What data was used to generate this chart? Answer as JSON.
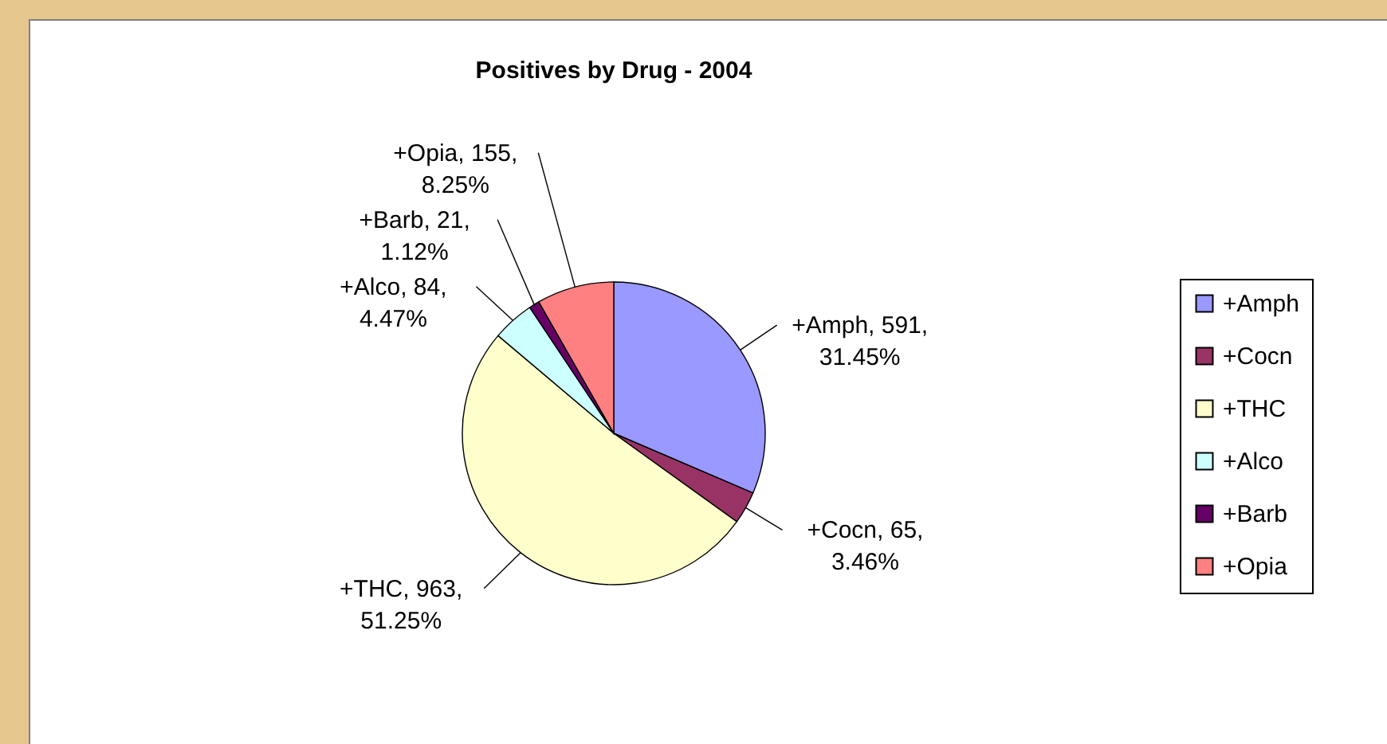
{
  "chart_data": {
    "type": "pie",
    "title": "Positives by Drug - 2004",
    "categories": [
      "+Amph",
      "+Cocn",
      "+THC",
      "+Alco",
      "+Barb",
      "+Opia"
    ],
    "values": [
      591,
      65,
      963,
      84,
      21,
      155
    ],
    "colors": [
      "#9999ff",
      "#993366",
      "#ffffcc",
      "#ccffff",
      "#660066",
      "#ff8080"
    ],
    "value_labels": [
      "+Amph, 591, 31.45%",
      "+Cocn, 65, 3.46%",
      "+THC, 963, 51.25%",
      "+Alco, 84, 4.47%",
      "+Barb, 21, 1.12%",
      "+Opia, 155, 8.25%"
    ],
    "legend": "right"
  }
}
